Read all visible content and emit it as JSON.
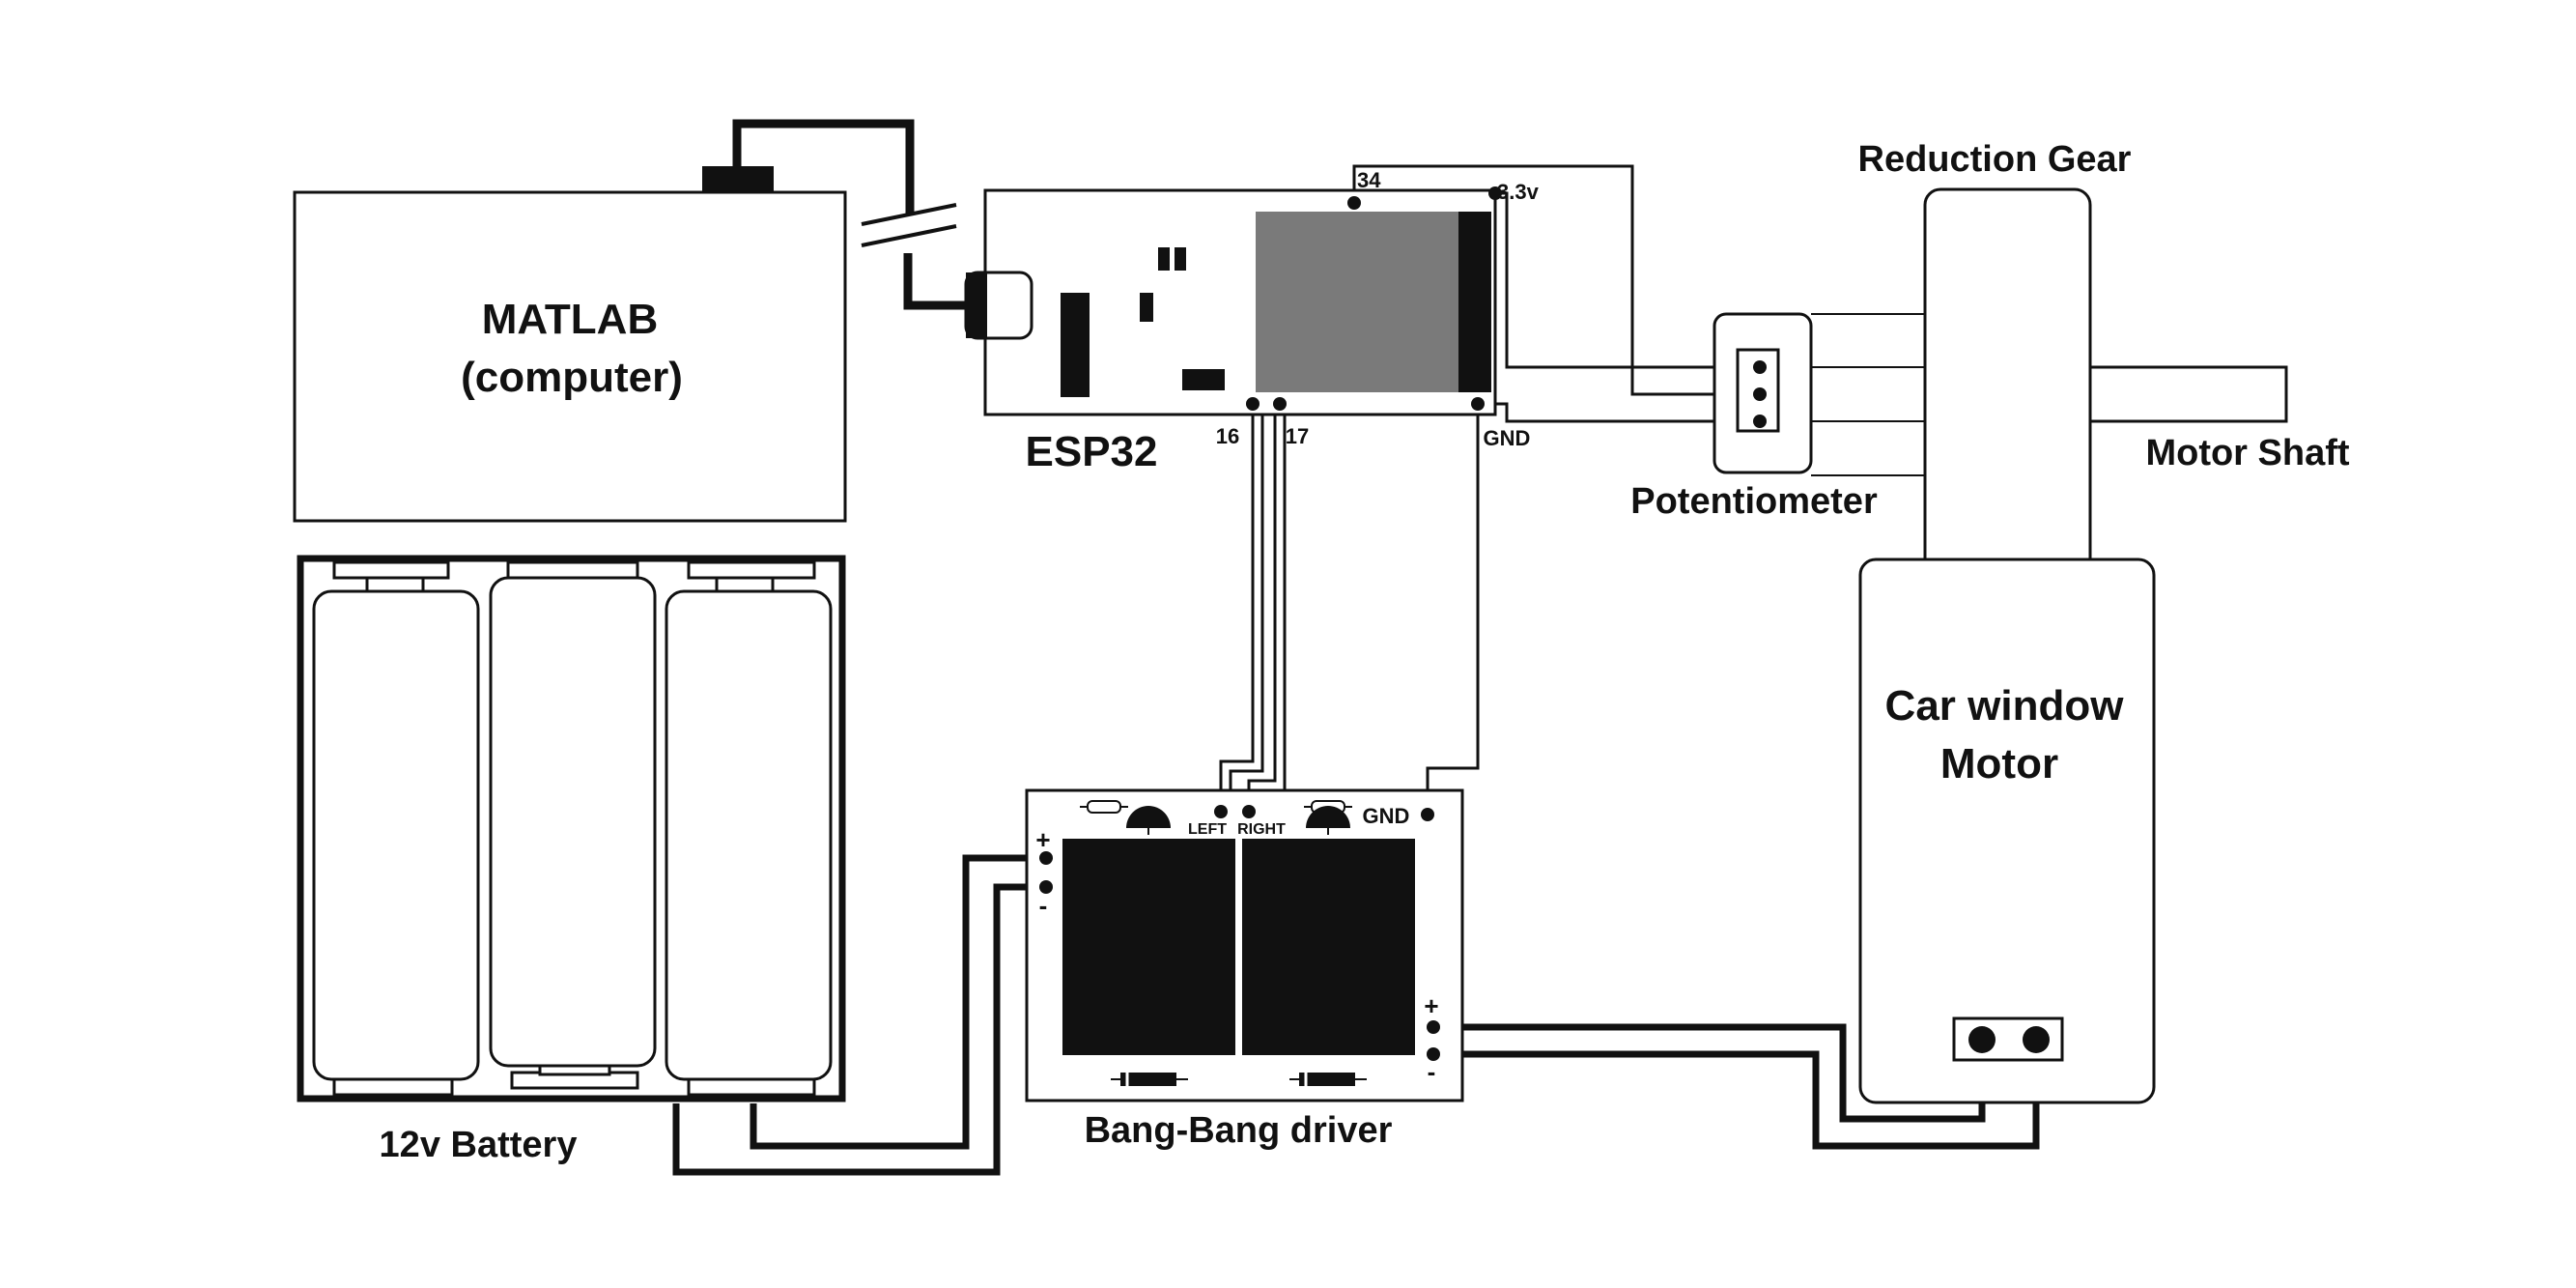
{
  "labels": {
    "matlab_line1": "MATLAB",
    "matlab_line2": "(computer)",
    "esp32": "ESP32",
    "battery": "12v Battery",
    "driver": "Bang-Bang driver",
    "reduction_gear": "Reduction Gear",
    "motor_shaft": "Motor Shaft",
    "potentiometer": "Potentiometer",
    "motor_line1": "Car window",
    "motor_line2": "Motor"
  },
  "esp32_pins": {
    "p34": "34",
    "p33v": "3.3v",
    "p16": "16",
    "p17": "17",
    "gnd": "GND"
  },
  "driver_pins": {
    "left": "LEFT",
    "right": "RIGHT",
    "gnd": "GND",
    "plus": "+",
    "minus": "-"
  },
  "motor_pins": {
    "plus": "+",
    "minus": "-"
  },
  "colors": {
    "stroke": "#111111",
    "screen": "#7a7a7a",
    "background": "#ffffff"
  }
}
